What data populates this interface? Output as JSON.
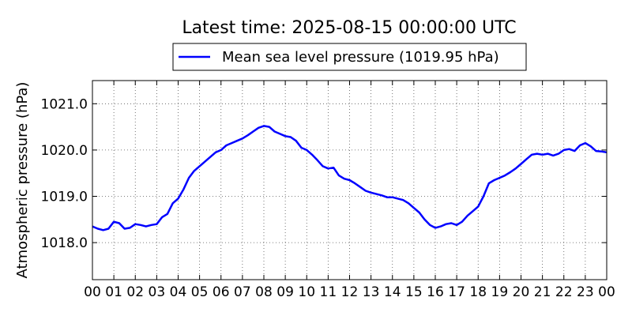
{
  "chart_data": {
    "type": "line",
    "title": "Latest time: 2025-08-15 00:00:00 UTC",
    "ylabel": "Atmospheric pressure (hPa)",
    "xlabel": "",
    "xlim": [
      0,
      24
    ],
    "ylim": [
      1017.2,
      1021.5
    ],
    "y_ticks": [
      1018.0,
      1019.0,
      1020.0,
      1021.0
    ],
    "y_tick_labels": [
      "1018.0",
      "1019.0",
      "1020.0",
      "1021.0"
    ],
    "x_ticks": [
      0,
      1,
      2,
      3,
      4,
      5,
      6,
      7,
      8,
      9,
      10,
      11,
      12,
      13,
      14,
      15,
      16,
      17,
      18,
      19,
      20,
      21,
      22,
      23,
      24
    ],
    "x_tick_labels": [
      "00",
      "01",
      "02",
      "03",
      "04",
      "05",
      "06",
      "07",
      "08",
      "09",
      "10",
      "11",
      "12",
      "13",
      "14",
      "15",
      "16",
      "17",
      "18",
      "19",
      "20",
      "21",
      "22",
      "23",
      "00"
    ],
    "grid": true,
    "legend_position": "top-center",
    "colors": {
      "line": "#0000ff",
      "grid": "#555555",
      "axes": "#000000"
    },
    "series": [
      {
        "name": "Mean sea level pressure (1019.95 hPa)",
        "x": [
          0.0,
          0.25,
          0.5,
          0.75,
          1.0,
          1.25,
          1.5,
          1.75,
          2.0,
          2.25,
          2.5,
          2.75,
          3.0,
          3.25,
          3.5,
          3.75,
          4.0,
          4.25,
          4.5,
          4.75,
          5.0,
          5.25,
          5.5,
          5.75,
          6.0,
          6.25,
          6.5,
          6.75,
          7.0,
          7.25,
          7.5,
          7.75,
          8.0,
          8.25,
          8.5,
          8.75,
          9.0,
          9.25,
          9.5,
          9.75,
          10.0,
          10.25,
          10.5,
          10.75,
          11.0,
          11.25,
          11.5,
          11.75,
          12.0,
          12.25,
          12.5,
          12.75,
          13.0,
          13.25,
          13.5,
          13.75,
          14.0,
          14.25,
          14.5,
          14.75,
          15.0,
          15.25,
          15.5,
          15.75,
          16.0,
          16.25,
          16.5,
          16.75,
          17.0,
          17.25,
          17.5,
          17.75,
          18.0,
          18.25,
          18.5,
          18.75,
          19.0,
          19.25,
          19.5,
          19.75,
          20.0,
          20.25,
          20.5,
          20.75,
          21.0,
          21.25,
          21.5,
          21.75,
          22.0,
          22.25,
          22.5,
          22.75,
          23.0,
          23.25,
          23.5,
          23.75,
          24.0
        ],
        "values": [
          1018.35,
          1018.3,
          1018.27,
          1018.3,
          1018.45,
          1018.42,
          1018.3,
          1018.32,
          1018.4,
          1018.38,
          1018.35,
          1018.38,
          1018.4,
          1018.55,
          1018.62,
          1018.85,
          1018.95,
          1019.15,
          1019.4,
          1019.55,
          1019.65,
          1019.75,
          1019.85,
          1019.95,
          1020.0,
          1020.1,
          1020.15,
          1020.2,
          1020.25,
          1020.32,
          1020.4,
          1020.48,
          1020.52,
          1020.5,
          1020.4,
          1020.35,
          1020.3,
          1020.28,
          1020.2,
          1020.05,
          1020.0,
          1019.9,
          1019.78,
          1019.65,
          1019.6,
          1019.62,
          1019.45,
          1019.38,
          1019.35,
          1019.28,
          1019.2,
          1019.12,
          1019.08,
          1019.05,
          1019.02,
          1018.98,
          1018.98,
          1018.95,
          1018.92,
          1018.85,
          1018.75,
          1018.65,
          1018.5,
          1018.38,
          1018.32,
          1018.35,
          1018.4,
          1018.42,
          1018.38,
          1018.45,
          1018.58,
          1018.68,
          1018.78,
          1019.0,
          1019.28,
          1019.35,
          1019.4,
          1019.45,
          1019.52,
          1019.6,
          1019.7,
          1019.8,
          1019.9,
          1019.92,
          1019.9,
          1019.92,
          1019.88,
          1019.92,
          1020.0,
          1020.02,
          1019.98,
          1020.1,
          1020.15,
          1020.08,
          1019.98,
          1019.97,
          1019.95
        ]
      }
    ]
  }
}
